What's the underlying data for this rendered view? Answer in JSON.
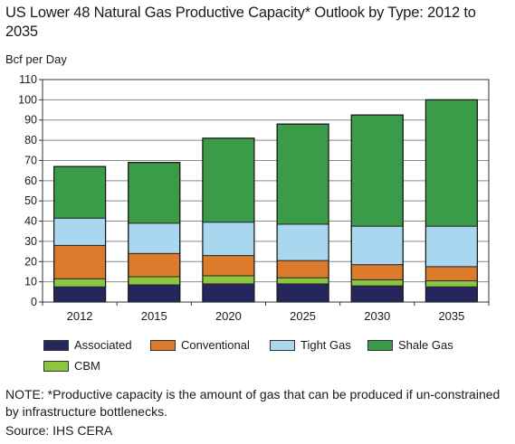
{
  "title": "US Lower 48 Natural Gas Productive Capacity* Outlook by Type: 2012 to 2035",
  "unit_label": "Bcf per Day",
  "note": "NOTE: *Productive capacity is the amount of gas that can be produced if un-constrained by infrastructure bottlenecks.",
  "source": "Source: IHS CERA",
  "chart_data": {
    "type": "bar",
    "stacked": true,
    "categories": [
      "2012",
      "2015",
      "2020",
      "2025",
      "2030",
      "2035"
    ],
    "ylabel": "Bcf per Day",
    "ylim": [
      0,
      110
    ],
    "yticks": [
      0,
      10,
      20,
      30,
      40,
      50,
      60,
      70,
      80,
      90,
      100,
      110
    ],
    "grid": true,
    "legend_position": "bottom",
    "series": [
      {
        "name": "Associated",
        "color": "#25265e",
        "values": [
          7.5,
          8.5,
          9,
          9,
          8,
          7.5
        ]
      },
      {
        "name": "CBM",
        "color": "#8cc63f",
        "values": [
          4,
          4,
          4,
          3,
          3,
          3
        ]
      },
      {
        "name": "Conventional",
        "color": "#dc7b2c",
        "values": [
          16.5,
          11.5,
          10,
          8.5,
          7.5,
          7
        ]
      },
      {
        "name": "Tight Gas",
        "color": "#a9d7f0",
        "values": [
          13.5,
          15,
          16.5,
          18,
          19,
          20
        ]
      },
      {
        "name": "Shale Gas",
        "color": "#3a9b48",
        "values": [
          25.5,
          30,
          41.5,
          49.5,
          55,
          62.5
        ]
      }
    ]
  },
  "legend": [
    {
      "label": "Associated",
      "color": "#25265e"
    },
    {
      "label": "Conventional",
      "color": "#dc7b2c"
    },
    {
      "label": "Tight Gas",
      "color": "#a9d7f0"
    },
    {
      "label": "Shale Gas",
      "color": "#3a9b48"
    },
    {
      "label": "CBM",
      "color": "#8cc63f"
    }
  ]
}
